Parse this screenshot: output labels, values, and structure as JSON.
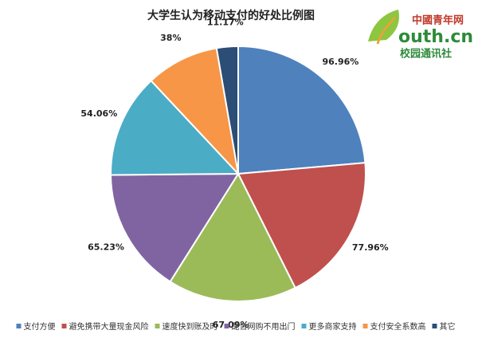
{
  "chart_data": {
    "type": "pie",
    "title": "大学生认为移动支付的好处比例图",
    "categories": [
      "支付方便",
      "避免携带大量现金风险",
      "速度快到账及时",
      "配合网购不用出门",
      "更多商家支持",
      "支付安全系数高",
      "其它"
    ],
    "values": [
      96.96,
      77.96,
      67.09,
      65.23,
      54.06,
      38,
      11.17
    ],
    "value_labels": [
      "96.96%",
      "77.96%",
      "67.09%",
      "65.23%",
      "54.06%",
      "38%",
      "11.17%"
    ],
    "colors": [
      "#4f81bd",
      "#c0504d",
      "#9bbb59",
      "#8064a2",
      "#4bacc6",
      "#f79646",
      "#2c4d75"
    ],
    "legend": "bottom",
    "annotations": [
      "中國青年网",
      "outh.cn",
      "校园通讯社"
    ]
  }
}
